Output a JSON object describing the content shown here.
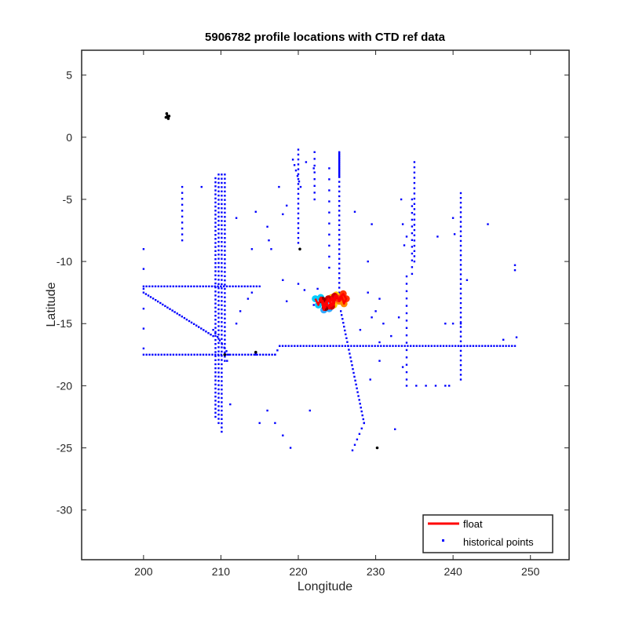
{
  "chart_data": {
    "type": "scatter",
    "title": "5906782 profile locations with CTD ref data",
    "xlabel": "Longitude",
    "ylabel": "Latitude",
    "xlim": [
      192,
      255
    ],
    "ylim": [
      -34,
      7
    ],
    "xticks": [
      200,
      210,
      220,
      230,
      240,
      250
    ],
    "yticks": [
      5,
      0,
      -5,
      -10,
      -15,
      -20,
      -25,
      -30
    ],
    "grid": false,
    "legend": {
      "placement": "bottom-right",
      "entries": [
        {
          "label": "float",
          "color": "#ff0000",
          "marker": "line"
        },
        {
          "label": "historical points",
          "color": "#0000ff",
          "marker": "point"
        }
      ]
    },
    "colors": {
      "historical": "#0000ff",
      "float": "#ff0000",
      "black_points": "#000000"
    },
    "series": [
      {
        "name": "historical points",
        "segments": [
          {
            "from": [
              200,
              -12
            ],
            "to": [
              215,
              -12
            ],
            "n": 40
          },
          {
            "from": [
              200,
              -12.5
            ],
            "to": [
              209,
              -16
            ],
            "n": 30
          },
          {
            "from": [
              200,
              -17.5
            ],
            "to": [
              217,
              -17.5
            ],
            "n": 45
          },
          {
            "from": [
              217,
              -17.5
            ],
            "to": [
              217.6,
              -16.8
            ],
            "n": 3
          },
          {
            "from": [
              217.6,
              -16.8
            ],
            "to": [
              248,
              -16.8
            ],
            "n": 80
          },
          {
            "from": [
              209.3,
              -3.3
            ],
            "to": [
              209.3,
              -22.5
            ],
            "n": 60
          },
          {
            "from": [
              209.7,
              -3
            ],
            "to": [
              209.7,
              -23
            ],
            "n": 60
          },
          {
            "from": [
              210.1,
              -3
            ],
            "to": [
              210.1,
              -23.7
            ],
            "n": 62
          },
          {
            "from": [
              210.5,
              -3
            ],
            "to": [
              210.5,
              -18
            ],
            "n": 45
          },
          {
            "from": [
              209,
              -15.5
            ],
            "to": [
              211,
              -17.5
            ],
            "n": 8
          },
          {
            "from": [
              205,
              -4
            ],
            "to": [
              205,
              -8.3
            ],
            "n": 10
          },
          {
            "from": [
              200,
              -9
            ],
            "to": [
              200,
              -17
            ],
            "n": 6
          },
          {
            "from": [
              225.3,
              -1.2
            ],
            "to": [
              225.3,
              -3.2
            ],
            "n": 20
          },
          {
            "from": [
              225.3,
              -3.2
            ],
            "to": [
              225.3,
              -12.5
            ],
            "n": 25
          },
          {
            "from": [
              225.5,
              -14
            ],
            "to": [
              228.5,
              -23
            ],
            "n": 30
          },
          {
            "from": [
              228.5,
              -23
            ],
            "to": [
              227,
              -25.2
            ],
            "n": 6
          },
          {
            "from": [
              220,
              -1
            ],
            "to": [
              220,
              -8.5
            ],
            "n": 20
          },
          {
            "from": [
              219.3,
              -1.8
            ],
            "to": [
              220.3,
              -4
            ],
            "n": 6
          },
          {
            "from": [
              222.1,
              -1.2
            ],
            "to": [
              222.1,
              -5
            ],
            "n": 8
          },
          {
            "from": [
              224,
              -2.5
            ],
            "to": [
              224,
              -10.5
            ],
            "n": 10
          },
          {
            "from": [
              235,
              -2
            ],
            "to": [
              235,
              -10
            ],
            "n": 20
          },
          {
            "from": [
              234.7,
              -5
            ],
            "to": [
              234.7,
              -11
            ],
            "n": 12
          },
          {
            "from": [
              241,
              -4.5
            ],
            "to": [
              241,
              -19.5
            ],
            "n": 40
          },
          {
            "from": [
              234,
              -11.2
            ],
            "to": [
              234,
              -19.5
            ],
            "n": 15
          },
          {
            "from": [
              234,
              -20
            ],
            "to": [
              239,
              -20
            ],
            "n": 5
          },
          {
            "from": [
              239,
              -15
            ],
            "to": [
              241,
              -15
            ],
            "n": 3
          },
          {
            "from": [
              248,
              -10.3
            ],
            "to": [
              248,
              -10.7
            ],
            "n": 2
          }
        ],
        "points": [
          [
            221,
            -2
          ],
          [
            222,
            -2.5
          ],
          [
            217.5,
            -4
          ],
          [
            218.5,
            -5.5
          ],
          [
            218,
            -6.2
          ],
          [
            216,
            -7.2
          ],
          [
            214.5,
            -6
          ],
          [
            212,
            -6.5
          ],
          [
            207.5,
            -4
          ],
          [
            216.2,
            -8.3
          ],
          [
            216.5,
            -9
          ],
          [
            214,
            -9
          ],
          [
            213.5,
            -13
          ],
          [
            214,
            -12.5
          ],
          [
            212.5,
            -14
          ],
          [
            212,
            -15
          ],
          [
            210.8,
            -18
          ],
          [
            211.2,
            -21.5
          ],
          [
            214.5,
            -17.5
          ],
          [
            214.5,
            -17.4
          ],
          [
            216,
            -22
          ],
          [
            221.5,
            -22
          ],
          [
            215,
            -23
          ],
          [
            217,
            -23
          ],
          [
            218,
            -24
          ],
          [
            219,
            -25
          ],
          [
            232.5,
            -23.5
          ],
          [
            222,
            -13.5
          ],
          [
            220.8,
            -12.3
          ],
          [
            218,
            -11.5
          ],
          [
            220,
            -11.8
          ],
          [
            222.5,
            -12.2
          ],
          [
            218.5,
            -13.2
          ],
          [
            230,
            -14
          ],
          [
            233,
            -14.5
          ],
          [
            231,
            -15
          ],
          [
            232,
            -16
          ],
          [
            230.5,
            -16.5
          ],
          [
            230.5,
            -18
          ],
          [
            229,
            -10
          ],
          [
            229,
            -12.5
          ],
          [
            230.5,
            -13
          ],
          [
            229.5,
            -14.5
          ],
          [
            228,
            -15.5
          ],
          [
            229.3,
            -19.5
          ],
          [
            227.3,
            -6
          ],
          [
            229.5,
            -7
          ],
          [
            233.3,
            -5
          ],
          [
            233.5,
            -7
          ],
          [
            234,
            -8
          ],
          [
            233.7,
            -8.7
          ],
          [
            238,
            -8
          ],
          [
            240,
            -6.5
          ],
          [
            240.2,
            -7.8
          ],
          [
            244.5,
            -7
          ],
          [
            246.5,
            -16.3
          ],
          [
            248.2,
            -16.1
          ],
          [
            241.8,
            -11.5
          ],
          [
            239.5,
            -20
          ],
          [
            233.5,
            -18.5
          ]
        ]
      },
      {
        "name": "float",
        "path": [
          [
            222.2,
            -13.0
          ],
          [
            222.6,
            -13.5
          ],
          [
            222.9,
            -12.9
          ],
          [
            223.3,
            -13.9
          ],
          [
            223.6,
            -13.2
          ],
          [
            224.0,
            -13.8
          ],
          [
            224.3,
            -12.9
          ],
          [
            224.6,
            -13.5
          ],
          [
            224.9,
            -12.7
          ],
          [
            225.3,
            -13.2
          ],
          [
            225.6,
            -12.8
          ],
          [
            225.9,
            -13.4
          ],
          [
            226.2,
            -13.0
          ],
          [
            225.8,
            -12.6
          ],
          [
            225.2,
            -13.0
          ],
          [
            224.7,
            -12.8
          ],
          [
            224.3,
            -13.6
          ],
          [
            223.9,
            -13.0
          ],
          [
            223.5,
            -13.7
          ],
          [
            223.1,
            -13.1
          ]
        ],
        "blob_colors": [
          "#00ccff",
          "#33aaff",
          "#ffcc00",
          "#ff8800",
          "#ff3300",
          "#cc0000",
          "#8b0000"
        ]
      }
    ],
    "black_points": [
      [
        203.0,
        1.9
      ],
      [
        203.1,
        1.7
      ],
      [
        203.2,
        1.5
      ],
      [
        202.9,
        1.6
      ],
      [
        203.3,
        1.7
      ],
      [
        220.2,
        -9.0
      ],
      [
        210.5,
        -17.5
      ],
      [
        214.5,
        -17.3
      ],
      [
        230.2,
        -25.0
      ]
    ]
  }
}
